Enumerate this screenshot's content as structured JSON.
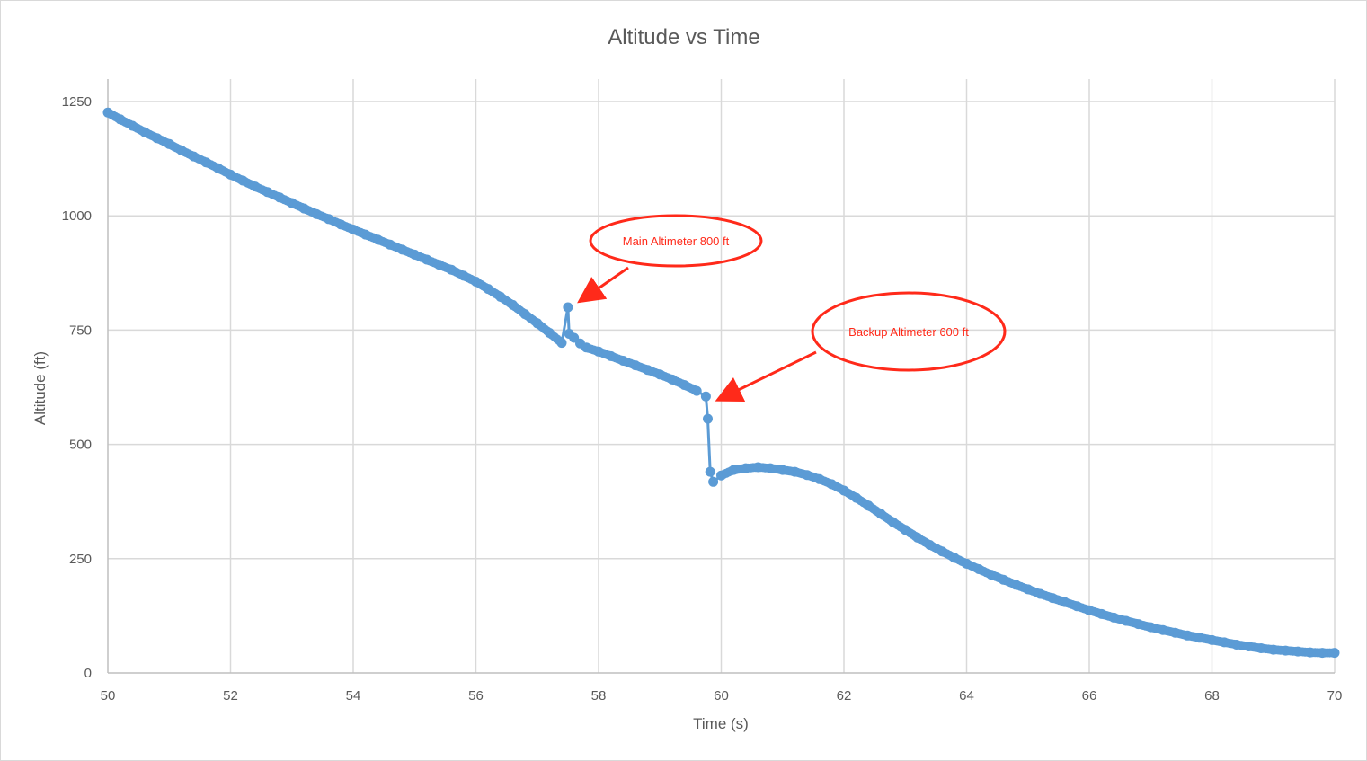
{
  "chart_data": {
    "type": "line",
    "title": "Altitude vs Time",
    "xlabel": "Time (s)",
    "ylabel": "Altitude (ft)",
    "xlim": [
      50,
      70
    ],
    "ylim": [
      0,
      1250
    ],
    "x_ticks": [
      50,
      52,
      54,
      56,
      58,
      60,
      62,
      64,
      66,
      68,
      70
    ],
    "y_ticks": [
      0,
      250,
      500,
      750,
      1000,
      1250
    ],
    "grid": true,
    "legend": "none",
    "series_color": "#5b9bd5",
    "annotation_color": "#ff2a1a",
    "series": [
      {
        "x": [
          50.0,
          50.2,
          50.4,
          50.6,
          50.8,
          51.0,
          51.2,
          51.4,
          51.6,
          51.8,
          52.0,
          52.2,
          52.4,
          52.6,
          52.8,
          53.0,
          53.2,
          53.4,
          53.6,
          53.8,
          54.0,
          54.2,
          54.4,
          54.6,
          54.8,
          55.0,
          55.2,
          55.4,
          55.6,
          55.8,
          56.0,
          56.2,
          56.4,
          56.6,
          56.8,
          57.0,
          57.2,
          57.4,
          57.5,
          57.52,
          57.6,
          57.7,
          57.8,
          58.0,
          58.2,
          58.4,
          58.6,
          58.8,
          59.0,
          59.2,
          59.4,
          59.6,
          59.75,
          59.78,
          59.82,
          59.87,
          60.0,
          60.2,
          60.4,
          60.6,
          60.8,
          61.0,
          61.2,
          61.4,
          61.6,
          61.8,
          62.0,
          62.2,
          62.4,
          62.6,
          62.8,
          63.0,
          63.2,
          63.4,
          63.6,
          63.8,
          64.0,
          64.2,
          64.4,
          64.6,
          64.8,
          65.0,
          65.2,
          65.4,
          65.6,
          65.8,
          66.0,
          66.2,
          66.4,
          66.6,
          66.8,
          67.0,
          67.2,
          67.4,
          67.6,
          67.8,
          68.0,
          68.2,
          68.4,
          68.6,
          68.8,
          69.0,
          69.2,
          69.4,
          69.6,
          69.8,
          70.0
        ],
        "y": [
          1226,
          1211,
          1197,
          1183,
          1170,
          1157,
          1143,
          1130,
          1117,
          1104,
          1090,
          1077,
          1064,
          1052,
          1040,
          1028,
          1016,
          1004,
          993,
          981,
          970,
          959,
          948,
          937,
          926,
          915,
          904,
          893,
          882,
          869,
          856,
          840,
          823,
          805,
          785,
          765,
          744,
          722,
          800,
          742,
          733,
          721,
          712,
          703,
          693,
          683,
          673,
          663,
          653,
          642,
          630,
          617,
          605,
          556,
          440,
          418,
          432,
          444,
          448,
          450,
          448,
          444,
          440,
          433,
          424,
          413,
          399,
          383,
          366,
          348,
          330,
          313,
          296,
          280,
          266,
          252,
          239,
          227,
          215,
          204,
          193,
          183,
          173,
          164,
          155,
          146,
          137,
          129,
          121,
          114,
          107,
          100,
          94,
          88,
          82,
          77,
          72,
          67,
          62,
          58,
          54,
          51,
          49,
          47,
          45,
          44,
          44
        ]
      }
    ],
    "annotations": [
      {
        "text": "Main Altimeter 800 ft",
        "x": 57.5,
        "y": 800
      },
      {
        "text": "Backup Altimeter 600 ft",
        "x": 59.75,
        "y": 605
      }
    ]
  }
}
